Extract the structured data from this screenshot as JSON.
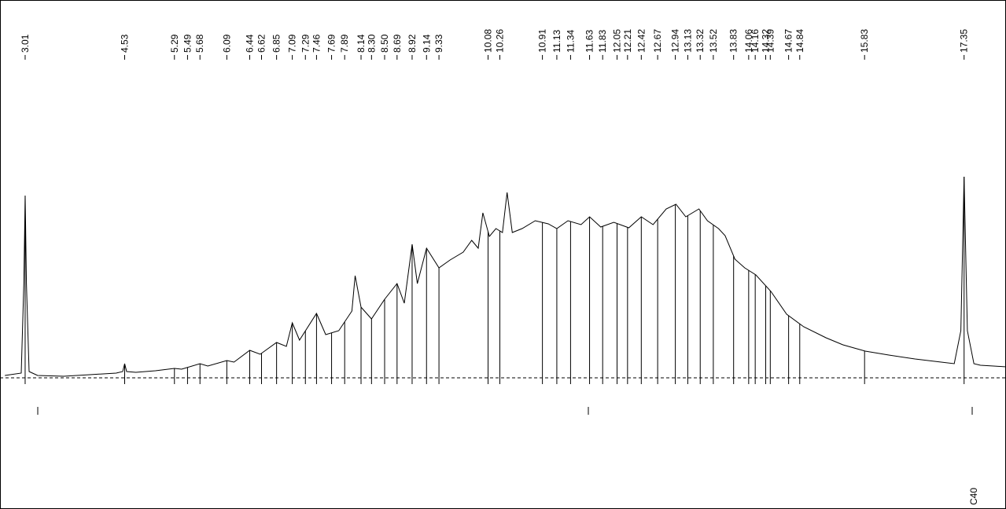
{
  "chart_data": {
    "type": "chromatogram",
    "annotation": "C40",
    "xlim": [
      2.626,
      17.99
    ],
    "ylim": [
      -167,
      481
    ],
    "x": [
      2.7,
      2.95,
      2.99,
      3.01,
      3.03,
      3.07,
      3.2,
      3.6,
      4.0,
      4.4,
      4.5,
      4.53,
      4.56,
      4.7,
      5.0,
      5.29,
      5.4,
      5.68,
      5.8,
      6.09,
      6.2,
      6.44,
      6.6,
      6.85,
      7.0,
      7.09,
      7.2,
      7.46,
      7.6,
      7.8,
      8.0,
      8.05,
      8.14,
      8.3,
      8.5,
      8.69,
      8.8,
      8.92,
      9.0,
      9.14,
      9.33,
      9.5,
      9.7,
      9.83,
      9.93,
      10.0,
      10.1,
      10.2,
      10.3,
      10.37,
      10.45,
      10.6,
      10.8,
      11.0,
      11.13,
      11.3,
      11.5,
      11.63,
      11.8,
      12.0,
      12.23,
      12.42,
      12.6,
      12.8,
      12.95,
      13.1,
      13.3,
      13.43,
      13.6,
      13.7,
      13.85,
      14.0,
      14.17,
      14.4,
      14.64,
      14.9,
      15.24,
      15.5,
      15.84,
      16.2,
      16.6,
      17.0,
      17.2,
      17.3,
      17.35,
      17.4,
      17.5,
      17.6,
      17.8,
      17.99
    ],
    "values": [
      3,
      6,
      120,
      232,
      120,
      8,
      3,
      2,
      4,
      6,
      8,
      18,
      8,
      7,
      9,
      12,
      11,
      18,
      15,
      22,
      20,
      35,
      30,
      45,
      40,
      70,
      48,
      82,
      55,
      60,
      85,
      130,
      90,
      75,
      100,
      120,
      95,
      170,
      120,
      165,
      140,
      150,
      160,
      175,
      165,
      210,
      180,
      190,
      185,
      236,
      185,
      190,
      200,
      196,
      190,
      200,
      195,
      205,
      192,
      198,
      191,
      205,
      195,
      215,
      221,
      205,
      215,
      200,
      190,
      181,
      151,
      140,
      131,
      110,
      81,
      65,
      51,
      42,
      34,
      29,
      24,
      20,
      18,
      60,
      256,
      60,
      18,
      16,
      15,
      14
    ],
    "peaks": [
      3.01,
      4.53,
      5.29,
      5.49,
      5.68,
      6.09,
      6.44,
      6.62,
      6.85,
      7.09,
      7.29,
      7.46,
      7.69,
      7.89,
      8.14,
      {
        "value": 8.3,
        "label": "8.30"
      },
      {
        "value": 8.5,
        "label": "8.50"
      },
      8.69,
      8.92,
      9.14,
      9.33,
      10.08,
      10.26,
      10.91,
      11.13,
      11.34,
      11.63,
      11.83,
      12.05,
      12.21,
      12.42,
      12.67,
      12.94,
      13.13,
      13.32,
      13.52,
      13.83,
      14.06,
      14.16,
      14.32,
      14.39,
      14.67,
      14.84,
      15.83,
      17.35
    ]
  }
}
